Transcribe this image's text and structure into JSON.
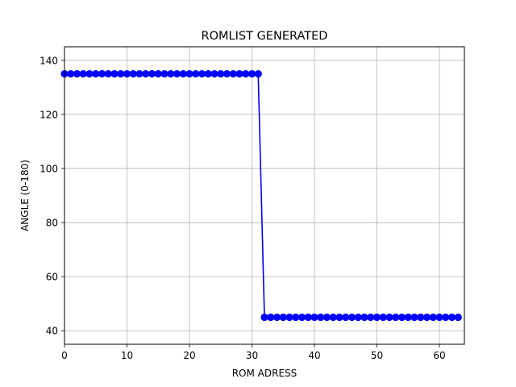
{
  "chart_data": {
    "type": "line",
    "title": "ROMLIST GENERATED",
    "xlabel": "ROM ADRESS",
    "ylabel": "ANGLE (0-180)",
    "xlim": [
      0,
      64
    ],
    "ylim": [
      35,
      145
    ],
    "xticks": [
      0,
      10,
      20,
      30,
      40,
      50,
      60
    ],
    "yticks": [
      40,
      60,
      80,
      100,
      120,
      140
    ],
    "grid": true,
    "series": [
      {
        "color": "#0000ff",
        "marker": "circle",
        "x": [
          0,
          1,
          2,
          3,
          4,
          5,
          6,
          7,
          8,
          9,
          10,
          11,
          12,
          13,
          14,
          15,
          16,
          17,
          18,
          19,
          20,
          21,
          22,
          23,
          24,
          25,
          26,
          27,
          28,
          29,
          30,
          31,
          32,
          33,
          34,
          35,
          36,
          37,
          38,
          39,
          40,
          41,
          42,
          43,
          44,
          45,
          46,
          47,
          48,
          49,
          50,
          51,
          52,
          53,
          54,
          55,
          56,
          57,
          58,
          59,
          60,
          61,
          62,
          63
        ],
        "y": [
          135,
          135,
          135,
          135,
          135,
          135,
          135,
          135,
          135,
          135,
          135,
          135,
          135,
          135,
          135,
          135,
          135,
          135,
          135,
          135,
          135,
          135,
          135,
          135,
          135,
          135,
          135,
          135,
          135,
          135,
          135,
          135,
          45,
          45,
          45,
          45,
          45,
          45,
          45,
          45,
          45,
          45,
          45,
          45,
          45,
          45,
          45,
          45,
          45,
          45,
          45,
          45,
          45,
          45,
          45,
          45,
          45,
          45,
          45,
          45,
          45,
          45,
          45,
          45
        ]
      }
    ]
  }
}
